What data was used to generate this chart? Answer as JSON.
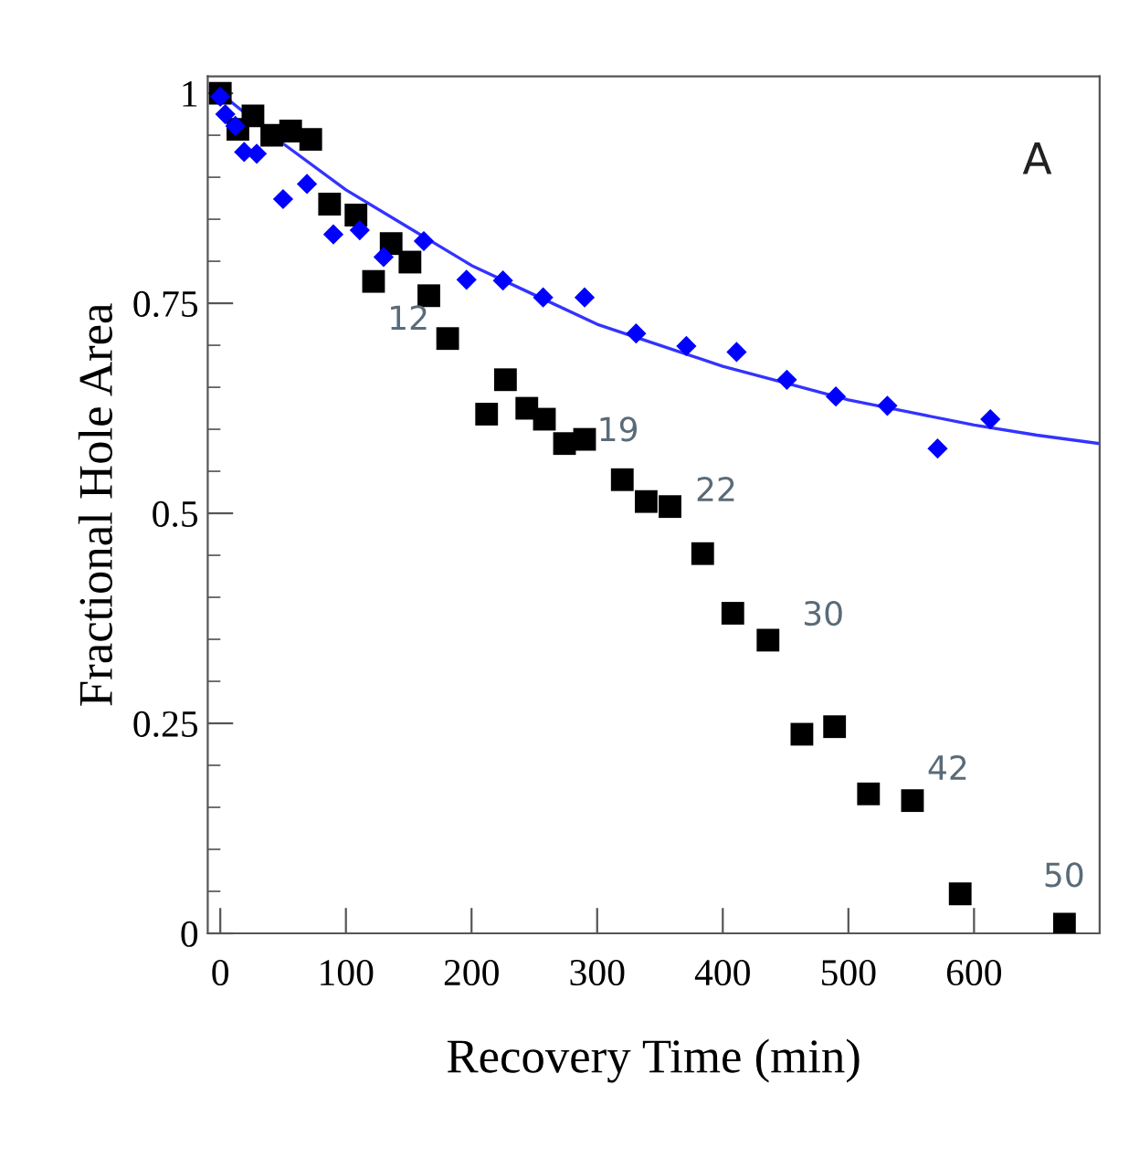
{
  "chart_data": {
    "type": "scatter",
    "xlabel": "Recovery Time (min)",
    "ylabel": "Fractional Hole Area",
    "xlim": [
      -10,
      700
    ],
    "xticks": [
      0,
      100,
      200,
      300,
      400,
      500,
      600
    ],
    "ylim": [
      0,
      1.02
    ],
    "yticks": [
      0,
      0.25,
      0.5,
      0.75,
      1
    ],
    "grid": false,
    "legend": false,
    "series": [
      {
        "marker": "square",
        "color": "#000000",
        "x": [
          0,
          14,
          26,
          41,
          56,
          72,
          87,
          108,
          122,
          136,
          151,
          166,
          181,
          212,
          227,
          244,
          258,
          274,
          290,
          320,
          339,
          358,
          384,
          408,
          436,
          463,
          489,
          516,
          551,
          589,
          672
        ],
        "values": [
          1.0,
          0.957,
          0.973,
          0.95,
          0.955,
          0.945,
          0.868,
          0.855,
          0.776,
          0.821,
          0.799,
          0.759,
          0.708,
          0.618,
          0.659,
          0.625,
          0.612,
          0.583,
          0.588,
          0.54,
          0.514,
          0.508,
          0.452,
          0.381,
          0.349,
          0.237,
          0.246,
          0.166,
          0.158,
          0.047,
          0.011
        ]
      },
      {
        "marker": "diamond",
        "color": "#0000ff",
        "x": [
          0,
          4,
          12,
          19,
          29,
          50,
          69,
          90,
          111,
          130,
          162,
          196,
          225,
          257,
          290,
          331,
          371,
          411,
          451,
          490,
          531,
          571,
          613
        ],
        "values": [
          0.996,
          0.975,
          0.961,
          0.93,
          0.928,
          0.874,
          0.892,
          0.832,
          0.837,
          0.805,
          0.824,
          0.778,
          0.777,
          0.757,
          0.757,
          0.714,
          0.699,
          0.692,
          0.659,
          0.639,
          0.628,
          0.577,
          0.612
        ]
      },
      {
        "type": "line",
        "marker": "none",
        "line_style": "solid",
        "color": "#3333ff",
        "x": [
          0,
          50,
          100,
          150,
          200,
          250,
          300,
          350,
          400,
          450,
          500,
          550,
          600,
          650,
          700
        ],
        "values": [
          1.0,
          0.94,
          0.885,
          0.84,
          0.795,
          0.76,
          0.725,
          0.7,
          0.675,
          0.655,
          0.635,
          0.62,
          0.605,
          0.593,
          0.583
        ]
      }
    ],
    "annotations": [
      "A",
      "12",
      "19",
      "22",
      "30",
      "42",
      "50"
    ]
  }
}
